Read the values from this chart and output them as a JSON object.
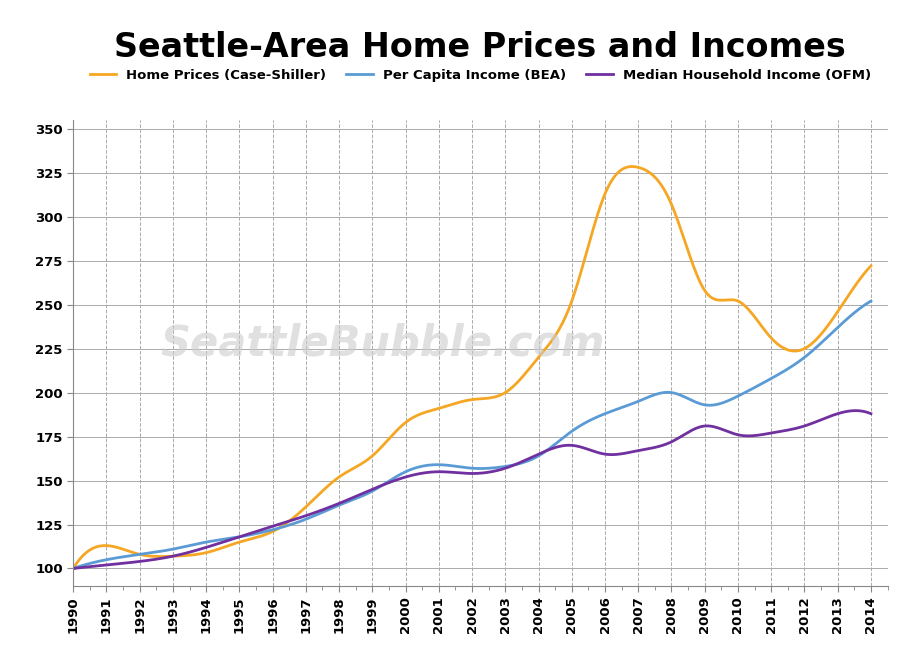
{
  "title": "Seattle-Area Home Prices and Incomes",
  "title_fontsize": 24,
  "watermark": "SeattleBubble.com",
  "background_color": "#ffffff",
  "home_prices_color": "#f5a623",
  "per_capita_color": "#5b9bd5",
  "median_color": "#7030a0",
  "ylim": [
    90,
    355
  ],
  "yticks": [
    100,
    125,
    150,
    175,
    200,
    225,
    250,
    275,
    300,
    325,
    350
  ],
  "xlim_left": 1990.0,
  "xlim_right": 2014.5,
  "legend_labels": [
    "Home Prices (Case-Shiller)",
    "Per Capita Income (BEA)",
    "Median Household Income (OFM)"
  ],
  "line_width": 2.0,
  "year_ticks": [
    1990,
    1991,
    1992,
    1993,
    1994,
    1995,
    1996,
    1997,
    1998,
    1999,
    2000,
    2001,
    2002,
    2003,
    2004,
    2005,
    2006,
    2007,
    2008,
    2009,
    2010,
    2011,
    2012,
    2013,
    2014
  ],
  "home_prices_annual": [
    100,
    113,
    108,
    107,
    109,
    115,
    121,
    135,
    152,
    164,
    183,
    191,
    196,
    200,
    220,
    252,
    313,
    328,
    307,
    258,
    252,
    231,
    225,
    246,
    272
  ],
  "per_capita_annual": [
    100,
    105,
    108,
    111,
    115,
    118,
    122,
    128,
    136,
    144,
    155,
    159,
    157,
    158,
    164,
    178,
    188,
    195,
    200,
    193,
    198,
    208,
    220,
    237,
    252
  ],
  "median_annual": [
    100,
    102,
    104,
    107,
    112,
    118,
    124,
    130,
    137,
    145,
    152,
    155,
    154,
    157,
    165,
    170,
    165,
    167,
    172,
    181,
    176,
    177,
    181,
    188,
    188
  ]
}
